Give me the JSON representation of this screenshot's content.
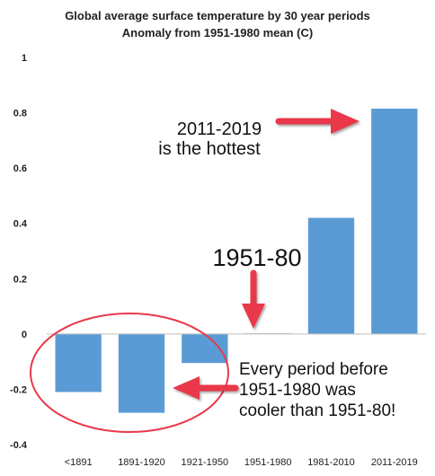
{
  "chart_data": {
    "type": "bar",
    "title": "Global average surface temperature by 30 year periods",
    "subtitle": "Anomaly from 1951-1980  mean (C)",
    "xlabel": "",
    "ylabel": "",
    "categories": [
      "<1891",
      "1891-1920",
      "1921-1950",
      "1951-1980",
      "1981-2010",
      "2011-2019"
    ],
    "values": [
      -0.21,
      -0.285,
      -0.105,
      0.002,
      0.42,
      0.815
    ],
    "ylim": [
      -0.4,
      1.0
    ],
    "yticks": [
      -0.4,
      -0.2,
      0,
      0.2,
      0.4,
      0.6,
      0.8,
      1.0
    ],
    "ytick_labels": [
      "-0.4",
      "-0.2",
      "0",
      "0.2",
      "0.4",
      "0.6",
      "0.8",
      "1"
    ],
    "grid": false,
    "bar_color": "#5b9bd5",
    "annotations": [
      {
        "id": "hottest",
        "lines": [
          "2011-2019",
          "is the hottest"
        ]
      },
      {
        "id": "baseline",
        "lines": [
          "1951-80"
        ]
      },
      {
        "id": "cooler",
        "lines": [
          "Every period before",
          "1951-1980 was",
          "cooler than 1951-80!"
        ]
      }
    ],
    "annotation_color": "#e8394a"
  }
}
